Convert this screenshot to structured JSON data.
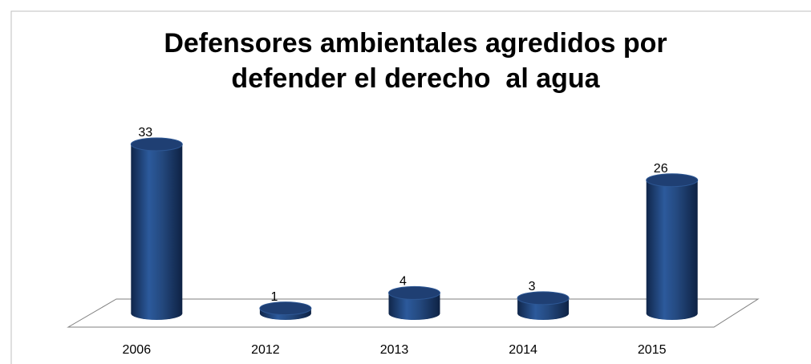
{
  "chart_data": {
    "type": "bar",
    "title": [
      "Defensores ambientales agredidos por",
      "defender el derecho  al agua"
    ],
    "categories": [
      "2006",
      "2012",
      "2013",
      "2014",
      "2015"
    ],
    "values": [
      33,
      1,
      4,
      3,
      26
    ],
    "color": "#1f3f73"
  }
}
